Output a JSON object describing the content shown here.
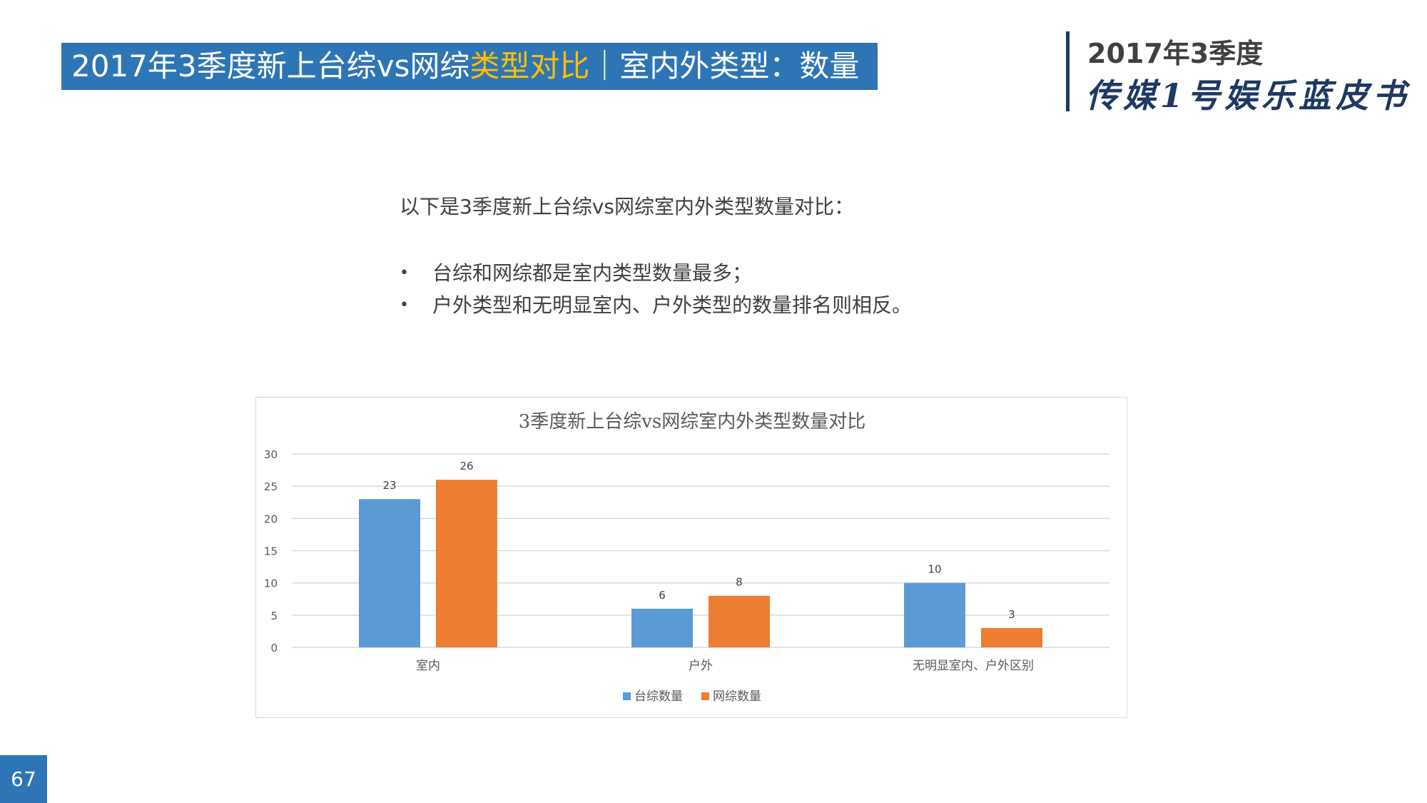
{
  "header": {
    "title_part1": "2017年3季度新上台综vs网综",
    "title_highlight": "类型对比",
    "title_part2": "｜室内外类型：数量",
    "brand_year": "2017年3季度",
    "brand_name": "传媒1号娱乐蓝皮书"
  },
  "body": {
    "intro": "以下是3季度新上台综vs网综室内外类型数量对比：",
    "bullets": [
      "台综和网综都是室内类型数量最多；",
      "户外类型和无明显室内、户外类型的数量排名则相反。"
    ],
    "bullet_glyph": "•"
  },
  "page_number": "67",
  "colors": {
    "banner": "#2e75b6",
    "highlight": "#ffc000",
    "series_tv": "#5b9bd5",
    "series_web": "#ed7d31",
    "brand": "#1f3864"
  },
  "chart_data": {
    "type": "bar",
    "title": "3季度新上台综vs网综室内外类型数量对比",
    "categories": [
      "室内",
      "户外",
      "无明显室内、户外区别"
    ],
    "series": [
      {
        "name": "台综数量",
        "values": [
          23,
          6,
          10
        ],
        "color": "#5b9bd5"
      },
      {
        "name": "网综数量",
        "values": [
          26,
          8,
          3
        ],
        "color": "#ed7d31"
      }
    ],
    "yticks": [
      0,
      5,
      10,
      15,
      20,
      25,
      30
    ],
    "ylim": [
      0,
      30
    ],
    "grid": true,
    "legend": "bottom",
    "data_labels": true
  }
}
